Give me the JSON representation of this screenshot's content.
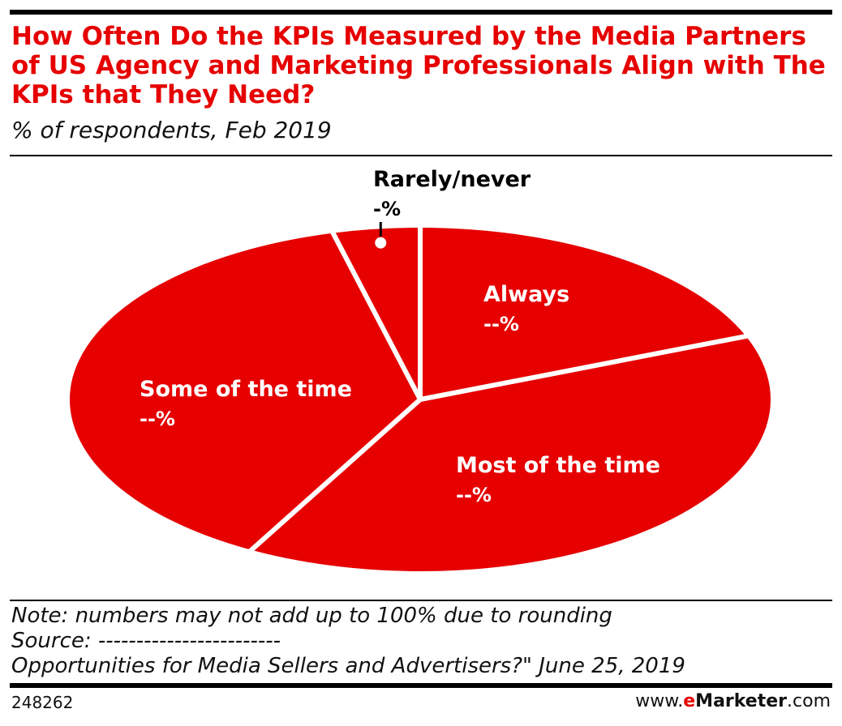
{
  "header": {
    "title": "How Often Do the KPIs Measured by the Media Partners of US Agency and Marketing Professionals Align with The KPIs that They Need?",
    "subtitle": "% of respondents, Feb 2019"
  },
  "chart_data": {
    "type": "pie",
    "title": "How Often Do the KPIs Measured by the Media Partners of US Agency and Marketing Professionals Align with The KPIs that They Need?",
    "subtitle": "% of respondents, Feb 2019",
    "slices": [
      {
        "label": "Always",
        "value_label": "--%",
        "approx_value": 19
      },
      {
        "label": "Most of the time",
        "value_label": "--%",
        "approx_value": 39
      },
      {
        "label": "Some of the time",
        "value_label": "--%",
        "approx_value": 38
      },
      {
        "label": "Rarely/never",
        "value_label": "-%",
        "approx_value": 4
      }
    ],
    "colors": {
      "slice": "#e60000",
      "separator": "#ffffff",
      "label_inside": "#ffffff",
      "label_outside": "#000000"
    }
  },
  "footer": {
    "note": "Note: numbers may not add up to 100% due to rounding",
    "source": "Source: ------------------------",
    "source_detail": "Opportunities for Media Sellers and Advertisers?\" June 25, 2019",
    "chart_id": "248262",
    "brand_prefix": "www.",
    "brand_e": "e",
    "brand_name": "Marketer",
    "brand_suffix": ".com"
  }
}
